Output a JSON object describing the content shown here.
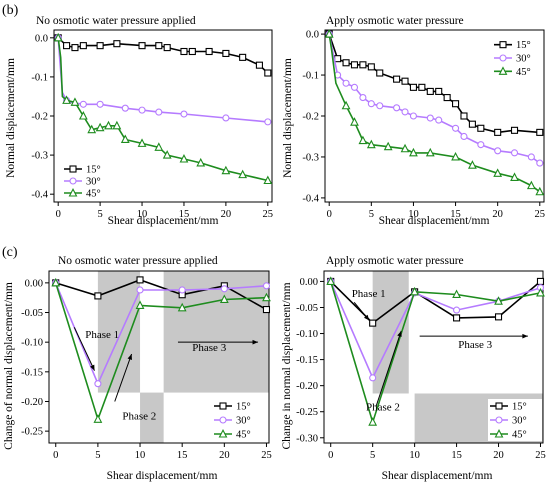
{
  "panel_labels": {
    "b": "(b)",
    "c": "(c)"
  },
  "colors": {
    "15": "#000000",
    "30": "#b57bff",
    "45": "#1e8c1e",
    "shade": "#c8c8c8"
  },
  "chart_data": [
    {
      "type": "line",
      "title": "No osmotic water pressure applied",
      "xlabel": "Shear displacement/mm",
      "ylabel": "Normal displacement/mm",
      "xlim": [
        -0.5,
        25.5
      ],
      "ylim": [
        -0.42,
        0.02
      ],
      "xticks": [
        0,
        5,
        10,
        15,
        20,
        25
      ],
      "yticks": [
        0.0,
        -0.1,
        -0.2,
        -0.3,
        -0.4
      ],
      "ytick_labels": [
        "0.0",
        "-0.1",
        "-0.2",
        "-0.3",
        "-0.4"
      ],
      "legend_position": "bottom-left",
      "series": [
        {
          "name": "15°",
          "marker": "square",
          "points": [
            [
              0,
              0
            ],
            [
              0.5,
              -0.01
            ],
            [
              1,
              -0.02
            ],
            [
              2,
              -0.025
            ],
            [
              3,
              -0.02
            ],
            [
              5,
              -0.02
            ],
            [
              7,
              -0.015
            ],
            [
              10,
              -0.02
            ],
            [
              12,
              -0.02
            ],
            [
              13,
              -0.025
            ],
            [
              15,
              -0.035
            ],
            [
              16,
              -0.035
            ],
            [
              18,
              -0.035
            ],
            [
              20,
              -0.04
            ],
            [
              22,
              -0.05
            ],
            [
              24,
              -0.07
            ],
            [
              25,
              -0.09
            ]
          ]
        },
        {
          "name": "30°",
          "marker": "circle",
          "points": [
            [
              0,
              0
            ],
            [
              0.2,
              -0.06
            ],
            [
              0.5,
              -0.14
            ],
            [
              1,
              -0.16
            ],
            [
              1.5,
              -0.165
            ],
            [
              3,
              -0.17
            ],
            [
              5,
              -0.17
            ],
            [
              8,
              -0.18
            ],
            [
              10,
              -0.185
            ],
            [
              12,
              -0.19
            ],
            [
              15,
              -0.195
            ],
            [
              20,
              -0.205
            ],
            [
              25,
              -0.215
            ]
          ]
        },
        {
          "name": "45°",
          "marker": "triangle",
          "points": [
            [
              0,
              0
            ],
            [
              0.3,
              -0.05
            ],
            [
              0.5,
              -0.15
            ],
            [
              1,
              -0.16
            ],
            [
              2,
              -0.165
            ],
            [
              3,
              -0.2
            ],
            [
              4,
              -0.235
            ],
            [
              5,
              -0.23
            ],
            [
              6,
              -0.225
            ],
            [
              7,
              -0.225
            ],
            [
              8,
              -0.26
            ],
            [
              10,
              -0.27
            ],
            [
              12,
              -0.28
            ],
            [
              13,
              -0.3
            ],
            [
              15,
              -0.31
            ],
            [
              17,
              -0.32
            ],
            [
              20,
              -0.34
            ],
            [
              22,
              -0.35
            ],
            [
              25,
              -0.365
            ]
          ]
        }
      ]
    },
    {
      "type": "line",
      "title": "Apply osmotic water pressure",
      "xlabel": "Shear displacement/mm",
      "ylabel": "Normal displacement/mm",
      "xlim": [
        -0.5,
        25.5
      ],
      "ylim": [
        -0.41,
        0.01
      ],
      "xticks": [
        0,
        5,
        10,
        15,
        20,
        25
      ],
      "yticks": [
        0.0,
        -0.1,
        -0.2,
        -0.3,
        -0.4
      ],
      "ytick_labels": [
        "0.0",
        "-0.1",
        "-0.2",
        "-0.3",
        "-0.4"
      ],
      "legend_position": "top-right",
      "series": [
        {
          "name": "15°",
          "marker": "square",
          "points": [
            [
              0,
              0
            ],
            [
              0.5,
              -0.03
            ],
            [
              1,
              -0.06
            ],
            [
              2,
              -0.07
            ],
            [
              3,
              -0.075
            ],
            [
              4,
              -0.075
            ],
            [
              5,
              -0.08
            ],
            [
              6,
              -0.095
            ],
            [
              8,
              -0.11
            ],
            [
              9,
              -0.115
            ],
            [
              10,
              -0.13
            ],
            [
              11,
              -0.13
            ],
            [
              12,
              -0.14
            ],
            [
              13,
              -0.14
            ],
            [
              14,
              -0.155
            ],
            [
              15,
              -0.17
            ],
            [
              16,
              -0.2
            ],
            [
              17,
              -0.22
            ],
            [
              18,
              -0.23
            ],
            [
              20,
              -0.24
            ],
            [
              22,
              -0.235
            ],
            [
              25,
              -0.24
            ]
          ]
        },
        {
          "name": "30°",
          "marker": "circle",
          "points": [
            [
              0,
              0
            ],
            [
              0.5,
              -0.05
            ],
            [
              1,
              -0.1
            ],
            [
              2,
              -0.12
            ],
            [
              3,
              -0.13
            ],
            [
              4,
              -0.155
            ],
            [
              5,
              -0.17
            ],
            [
              6,
              -0.175
            ],
            [
              8,
              -0.18
            ],
            [
              9,
              -0.19
            ],
            [
              10,
              -0.2
            ],
            [
              12,
              -0.205
            ],
            [
              13,
              -0.21
            ],
            [
              15,
              -0.23
            ],
            [
              16,
              -0.25
            ],
            [
              18,
              -0.27
            ],
            [
              20,
              -0.285
            ],
            [
              22,
              -0.29
            ],
            [
              24,
              -0.3
            ],
            [
              25,
              -0.315
            ]
          ]
        },
        {
          "name": "45°",
          "marker": "triangle",
          "points": [
            [
              0,
              0
            ],
            [
              0.3,
              -0.04
            ],
            [
              0.8,
              -0.12
            ],
            [
              2,
              -0.175
            ],
            [
              3,
              -0.215
            ],
            [
              4,
              -0.26
            ],
            [
              5,
              -0.27
            ],
            [
              7,
              -0.275
            ],
            [
              9,
              -0.28
            ],
            [
              10,
              -0.29
            ],
            [
              12,
              -0.29
            ],
            [
              15,
              -0.3
            ],
            [
              17,
              -0.32
            ],
            [
              20,
              -0.34
            ],
            [
              22,
              -0.35
            ],
            [
              24,
              -0.37
            ],
            [
              25,
              -0.385
            ]
          ]
        }
      ]
    },
    {
      "type": "line",
      "title": "No osmotic water pressure applied",
      "xlabel": "Shear displacement/mm",
      "ylabel": "Change of normal displacement/mm",
      "xlim": [
        -0.8,
        25.3
      ],
      "ylim": [
        -0.27,
        0.02
      ],
      "xticks": [
        0,
        5,
        10,
        15,
        20,
        25
      ],
      "yticks": [
        0.0,
        -0.05,
        -0.1,
        -0.15,
        -0.2,
        -0.25
      ],
      "ytick_labels": [
        "0.00",
        "-0.05",
        "-0.10",
        "-0.15",
        "-0.20",
        "-0.25"
      ],
      "legend_position": "bottom-right",
      "series": [
        {
          "name": "15°",
          "marker": "square",
          "points": [
            [
              0,
              0
            ],
            [
              5,
              -0.022
            ],
            [
              10,
              0.005
            ],
            [
              15,
              -0.02
            ],
            [
              20,
              -0.005
            ],
            [
              25,
              -0.045
            ]
          ]
        },
        {
          "name": "30°",
          "marker": "circle",
          "points": [
            [
              0,
              0
            ],
            [
              5,
              -0.17
            ],
            [
              10,
              -0.012
            ],
            [
              15,
              -0.012
            ],
            [
              20,
              -0.01
            ],
            [
              25,
              -0.005
            ]
          ]
        },
        {
          "name": "45°",
          "marker": "triangle",
          "points": [
            [
              0,
              0
            ],
            [
              5,
              -0.23
            ],
            [
              10,
              -0.038
            ],
            [
              15,
              -0.042
            ],
            [
              20,
              -0.028
            ],
            [
              25,
              -0.025
            ]
          ]
        }
      ],
      "annotations": [
        {
          "text": "Phase 1",
          "x": 3.5,
          "y": -0.093
        },
        {
          "text": "Phase 3",
          "x": 16.2,
          "y": -0.115
        },
        {
          "text": "Phase 2",
          "x": 7.9,
          "y": -0.23
        }
      ]
    },
    {
      "type": "line",
      "title": "Apply osmotic water pressure",
      "xlabel": "Shear displacement/mm",
      "ylabel": "Change in normal displacement/mm",
      "xlim": [
        -0.8,
        25.3
      ],
      "ylim": [
        -0.31,
        0.02
      ],
      "xticks": [
        0,
        5,
        10,
        15,
        20,
        25
      ],
      "yticks": [
        0.0,
        -0.05,
        -0.1,
        -0.15,
        -0.2,
        -0.25,
        -0.3
      ],
      "ytick_labels": [
        "0.00",
        "-0.05",
        "-0.10",
        "-0.15",
        "-0.20",
        "-0.25",
        "-0.30"
      ],
      "legend_position": "bottom-right",
      "series": [
        {
          "name": "15°",
          "marker": "square",
          "points": [
            [
              0,
              0
            ],
            [
              5,
              -0.08
            ],
            [
              10,
              -0.02
            ],
            [
              15,
              -0.07
            ],
            [
              20,
              -0.068
            ],
            [
              25,
              0
            ]
          ]
        },
        {
          "name": "30°",
          "marker": "circle",
          "points": [
            [
              0,
              0
            ],
            [
              5,
              -0.185
            ],
            [
              10,
              -0.022
            ],
            [
              15,
              -0.055
            ],
            [
              20,
              -0.038
            ],
            [
              25,
              -0.012
            ]
          ]
        },
        {
          "name": "45°",
          "marker": "triangle",
          "points": [
            [
              0,
              0
            ],
            [
              5,
              -0.27
            ],
            [
              10,
              -0.02
            ],
            [
              15,
              -0.025
            ],
            [
              20,
              -0.038
            ],
            [
              25,
              -0.022
            ]
          ]
        }
      ],
      "annotations": [
        {
          "text": "Phase 1",
          "x": 2.5,
          "y": -0.03
        },
        {
          "text": "Phase 3",
          "x": 15.2,
          "y": -0.128
        },
        {
          "text": "Phase 2",
          "x": 4.2,
          "y": -0.248
        }
      ]
    }
  ]
}
